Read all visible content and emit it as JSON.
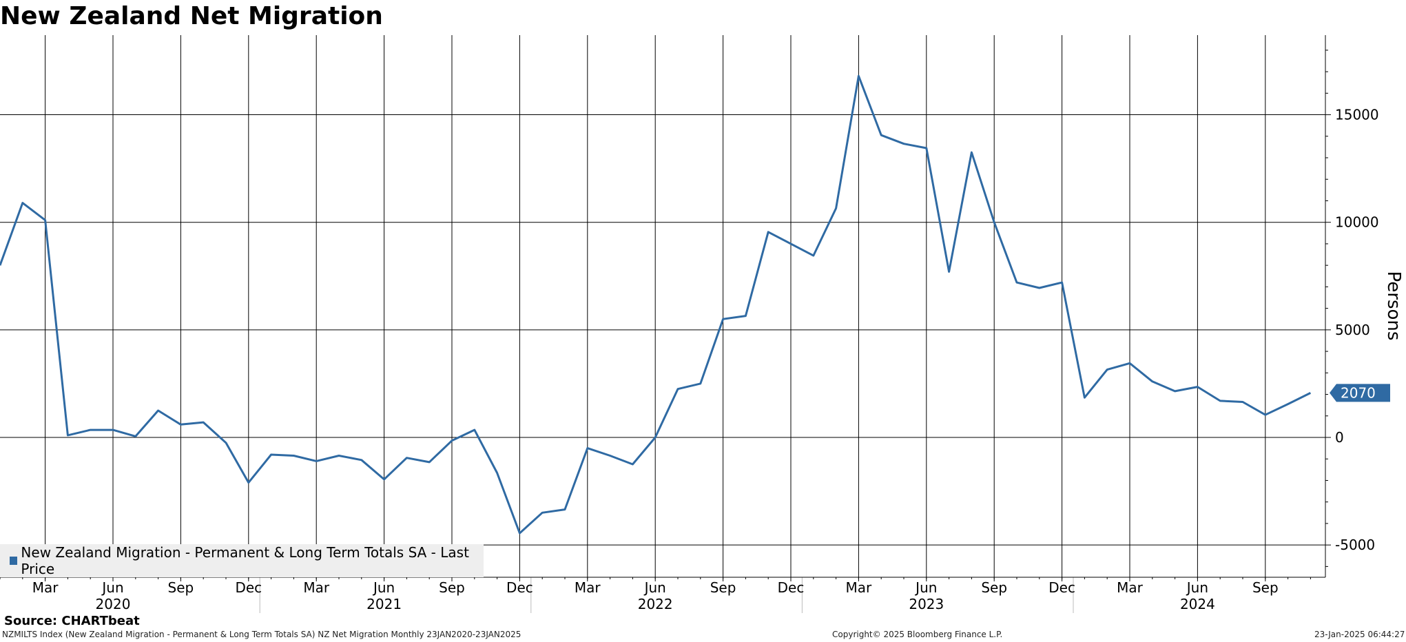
{
  "header": {
    "title": "New Zealand Net Migration"
  },
  "legend": {
    "label": "New Zealand Migration - Permanent & Long Term Totals SA - Last Price"
  },
  "footer": {
    "source": "Source: CHARTbeat",
    "description": "NZMILTS Index (New Zealand Migration - Permanent & Long Term Totals SA) NZ Net Migration  Monthly 23JAN2020-23JAN2025",
    "copyright": "Copyright© 2025 Bloomberg Finance L.P.",
    "timestamp": "23-Jan-2025 06:44:27"
  },
  "chart_data": {
    "type": "line",
    "ylabel": "Persons",
    "ylim": [
      -6500,
      18700
    ],
    "yticks": [
      15000,
      10000,
      5000,
      0,
      -5000
    ],
    "grid": true,
    "legend_position": "bottom-left",
    "last_value_label": "2070",
    "x_month_ticks": [
      {
        "label": "Mar",
        "date": "2020-03"
      },
      {
        "label": "Jun",
        "date": "2020-06"
      },
      {
        "label": "Sep",
        "date": "2020-09"
      },
      {
        "label": "Dec",
        "date": "2020-12"
      },
      {
        "label": "Mar",
        "date": "2021-03"
      },
      {
        "label": "Jun",
        "date": "2021-06"
      },
      {
        "label": "Sep",
        "date": "2021-09"
      },
      {
        "label": "Dec",
        "date": "2021-12"
      },
      {
        "label": "Mar",
        "date": "2022-03"
      },
      {
        "label": "Jun",
        "date": "2022-06"
      },
      {
        "label": "Sep",
        "date": "2022-09"
      },
      {
        "label": "Dec",
        "date": "2022-12"
      },
      {
        "label": "Mar",
        "date": "2023-03"
      },
      {
        "label": "Jun",
        "date": "2023-06"
      },
      {
        "label": "Sep",
        "date": "2023-09"
      },
      {
        "label": "Dec",
        "date": "2023-12"
      },
      {
        "label": "Mar",
        "date": "2024-03"
      },
      {
        "label": "Jun",
        "date": "2024-06"
      },
      {
        "label": "Sep",
        "date": "2024-09"
      }
    ],
    "x_year_labels": [
      {
        "label": "2020",
        "date": "2020-06"
      },
      {
        "label": "2021",
        "date": "2021-06"
      },
      {
        "label": "2022",
        "date": "2022-06"
      },
      {
        "label": "2023",
        "date": "2023-06"
      },
      {
        "label": "2024",
        "date": "2024-06"
      }
    ],
    "year_separators": [
      "2021-01",
      "2022-01",
      "2023-01",
      "2024-01"
    ],
    "x_start": "2020-01",
    "x_end": "2024-11",
    "series": [
      {
        "name": "New Zealand Migration - Permanent & Long Term Totals SA - Last Price",
        "color": "#2f6aa3",
        "x": [
          "2020-01",
          "2020-02",
          "2020-03",
          "2020-04",
          "2020-05",
          "2020-06",
          "2020-07",
          "2020-08",
          "2020-09",
          "2020-10",
          "2020-11",
          "2020-12",
          "2021-01",
          "2021-02",
          "2021-03",
          "2021-04",
          "2021-05",
          "2021-06",
          "2021-07",
          "2021-08",
          "2021-09",
          "2021-10",
          "2021-11",
          "2021-12",
          "2022-01",
          "2022-02",
          "2022-03",
          "2022-04",
          "2022-05",
          "2022-06",
          "2022-07",
          "2022-08",
          "2022-09",
          "2022-10",
          "2022-11",
          "2022-12",
          "2023-01",
          "2023-02",
          "2023-03",
          "2023-04",
          "2023-05",
          "2023-06",
          "2023-07",
          "2023-08",
          "2023-09",
          "2023-10",
          "2023-11",
          "2023-12",
          "2024-01",
          "2024-02",
          "2024-03",
          "2024-04",
          "2024-05",
          "2024-06",
          "2024-07",
          "2024-08",
          "2024-09",
          "2024-10",
          "2024-11"
        ],
        "values": [
          8000,
          10900,
          10100,
          100,
          350,
          350,
          50,
          1250,
          600,
          700,
          -250,
          -2100,
          -800,
          -850,
          -1100,
          -850,
          -1050,
          -1950,
          -950,
          -1150,
          -150,
          350,
          -1650,
          -4450,
          -3500,
          -3350,
          -500,
          -850,
          -1250,
          0,
          2250,
          2500,
          5500,
          5650,
          9550,
          9000,
          8450,
          10650,
          16800,
          14050,
          13650,
          13450,
          7700,
          13250,
          10000,
          7200,
          6950,
          7200,
          1850,
          3150,
          3450,
          2600,
          2150,
          2350,
          1700,
          1650,
          1050,
          1550,
          2070
        ]
      }
    ]
  }
}
